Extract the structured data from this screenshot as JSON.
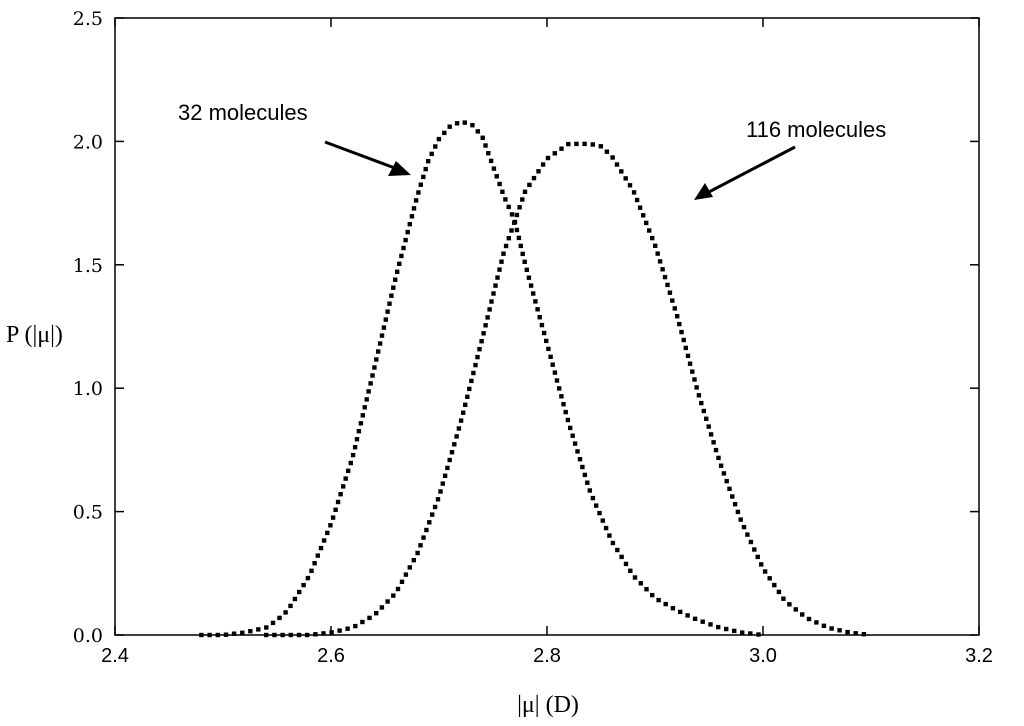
{
  "chart_data": {
    "type": "scatter",
    "title": "",
    "xlabel": "|μ| (D)",
    "ylabel": "P (|μ|)",
    "xlim": [
      2.4,
      3.2
    ],
    "ylim": [
      0.0,
      2.5
    ],
    "x_ticks": [
      "2.4",
      "2.6",
      "2.8",
      "3.0",
      "3.2"
    ],
    "y_ticks": [
      "0.0",
      "0.5",
      "1.0",
      "1.5",
      "2.0",
      "2.5"
    ],
    "grid": false,
    "legend": "none",
    "marker": "dotted",
    "color": "#000000",
    "series": [
      {
        "name": "32 molecules",
        "x": [
          2.48,
          2.5,
          2.52,
          2.54,
          2.55,
          2.56,
          2.58,
          2.6,
          2.62,
          2.64,
          2.66,
          2.68,
          2.69,
          2.7,
          2.71,
          2.72,
          2.73,
          2.74,
          2.75,
          2.76,
          2.77,
          2.78,
          2.8,
          2.82,
          2.84,
          2.86,
          2.88,
          2.9,
          2.92,
          2.94,
          2.96,
          2.98,
          3.0
        ],
        "y": [
          0.0,
          0.0,
          0.01,
          0.03,
          0.06,
          0.1,
          0.24,
          0.45,
          0.72,
          1.08,
          1.45,
          1.78,
          1.92,
          2.01,
          2.06,
          2.08,
          2.07,
          2.02,
          1.9,
          1.78,
          1.68,
          1.5,
          1.18,
          0.86,
          0.58,
          0.38,
          0.24,
          0.15,
          0.1,
          0.06,
          0.03,
          0.01,
          0.0
        ]
      },
      {
        "name": "116 molecules",
        "x": [
          2.54,
          2.56,
          2.58,
          2.6,
          2.62,
          2.64,
          2.66,
          2.68,
          2.7,
          2.72,
          2.74,
          2.76,
          2.78,
          2.8,
          2.82,
          2.84,
          2.85,
          2.86,
          2.88,
          2.9,
          2.92,
          2.94,
          2.96,
          2.98,
          3.0,
          3.02,
          3.04,
          3.06,
          3.08,
          3.1
        ],
        "y": [
          0.0,
          0.0,
          0.0,
          0.01,
          0.03,
          0.08,
          0.17,
          0.33,
          0.56,
          0.86,
          1.2,
          1.55,
          1.8,
          1.93,
          1.99,
          1.99,
          1.98,
          1.94,
          1.8,
          1.58,
          1.3,
          0.98,
          0.7,
          0.46,
          0.27,
          0.14,
          0.07,
          0.03,
          0.01,
          0.0
        ]
      }
    ],
    "annotations": [
      {
        "text": "32 molecules",
        "target_series": "32 molecules"
      },
      {
        "text": "116 molecules",
        "target_series": "116 molecules"
      }
    ]
  }
}
